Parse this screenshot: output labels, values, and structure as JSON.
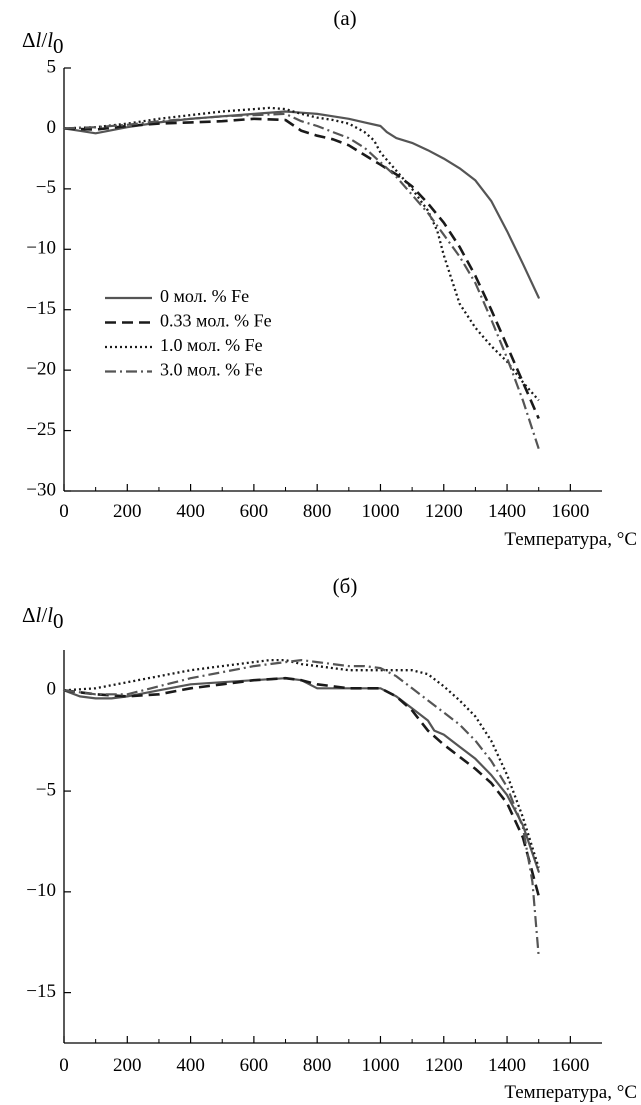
{
  "chart_data": [
    {
      "type": "line",
      "panel_label": "(a)",
      "ylabel": {
        "delta": "Δ",
        "l": "l",
        "slash": "/",
        "l0": "l",
        "sub": "0"
      },
      "xlabel": "Температура, °C",
      "xlim": [
        0,
        1700
      ],
      "ylim": [
        -30,
        5
      ],
      "xticks": [
        0,
        200,
        400,
        600,
        800,
        1000,
        1200,
        1400,
        1600
      ],
      "yticks": [
        5,
        0,
        -5,
        -10,
        -15,
        -20,
        -25,
        -30
      ],
      "ytick_labels": [
        "5",
        "0",
        "−5",
        "−10",
        "−15",
        "−20",
        "−25",
        "−30"
      ],
      "legend_position": "lower-left",
      "series": [
        {
          "name": "0 мол. % Fe",
          "style": "solid",
          "x": [
            0,
            50,
            100,
            200,
            300,
            400,
            500,
            600,
            700,
            750,
            800,
            850,
            900,
            950,
            1000,
            1020,
            1050,
            1100,
            1150,
            1200,
            1250,
            1300,
            1350,
            1400,
            1450,
            1500
          ],
          "y": [
            0,
            -0.2,
            -0.4,
            0.1,
            0.5,
            0.8,
            1.0,
            1.2,
            1.4,
            1.3,
            1.2,
            1.0,
            0.8,
            0.5,
            0.2,
            -0.3,
            -0.8,
            -1.2,
            -1.8,
            -2.5,
            -3.3,
            -4.3,
            -6.0,
            -8.5,
            -11.2,
            -14.0
          ]
        },
        {
          "name": "0.33 мол. % Fe",
          "style": "dashed",
          "x": [
            0,
            100,
            200,
            300,
            400,
            500,
            600,
            700,
            750,
            800,
            850,
            900,
            950,
            1000,
            1050,
            1100,
            1150,
            1200,
            1250,
            1300,
            1350,
            1400,
            1450,
            1500
          ],
          "y": [
            0,
            -0.1,
            0.2,
            0.4,
            0.5,
            0.6,
            0.8,
            0.7,
            -0.2,
            -0.6,
            -0.9,
            -1.4,
            -2.2,
            -3.0,
            -3.8,
            -4.8,
            -6.2,
            -7.8,
            -9.8,
            -12.2,
            -15.0,
            -18.0,
            -21.0,
            -24.0
          ]
        },
        {
          "name": "1.0 мол. % Fe",
          "style": "dotted",
          "x": [
            0,
            100,
            200,
            300,
            400,
            500,
            600,
            650,
            700,
            750,
            800,
            850,
            900,
            950,
            980,
            1000,
            1050,
            1100,
            1150,
            1180,
            1200,
            1250,
            1300,
            1350,
            1400,
            1450,
            1500
          ],
          "y": [
            0,
            0.1,
            0.4,
            0.8,
            1.1,
            1.4,
            1.6,
            1.7,
            1.6,
            1.2,
            0.9,
            0.7,
            0.4,
            -0.3,
            -1.0,
            -2.0,
            -3.5,
            -5.0,
            -6.8,
            -8.5,
            -10.5,
            -14.5,
            -16.5,
            -18.0,
            -19.3,
            -21.0,
            -22.5
          ]
        },
        {
          "name": "3.0 мол. % Fe",
          "style": "dashdot",
          "x": [
            0,
            100,
            200,
            300,
            400,
            500,
            600,
            700,
            750,
            800,
            850,
            900,
            950,
            1000,
            1050,
            1100,
            1150,
            1200,
            1250,
            1300,
            1350,
            1400,
            1450,
            1500
          ],
          "y": [
            0,
            0.1,
            0.3,
            0.6,
            0.8,
            1.0,
            1.1,
            1.2,
            0.6,
            0.2,
            -0.3,
            -0.8,
            -1.6,
            -2.8,
            -4.0,
            -5.5,
            -7.0,
            -8.8,
            -10.6,
            -12.8,
            -15.8,
            -19.0,
            -22.5,
            -26.5
          ]
        }
      ]
    },
    {
      "type": "line",
      "panel_label": "(б)",
      "ylabel": {
        "delta": "Δ",
        "l": "l",
        "slash": "/",
        "l0": "l",
        "sub": "0"
      },
      "xlabel": "Температура, °C",
      "xlim": [
        0,
        1700
      ],
      "ylim": [
        -17.5,
        2
      ],
      "xticks": [
        0,
        200,
        400,
        600,
        800,
        1000,
        1200,
        1400,
        1600
      ],
      "yticks": [
        0,
        -5,
        -10,
        -15
      ],
      "ytick_labels": [
        "0",
        "−5",
        "−10",
        "−15"
      ],
      "series": [
        {
          "style": "solid",
          "x": [
            0,
            50,
            100,
            150,
            200,
            300,
            400,
            500,
            600,
            700,
            750,
            800,
            850,
            900,
            950,
            1000,
            1050,
            1100,
            1150,
            1170,
            1200,
            1250,
            1300,
            1350,
            1400,
            1450,
            1500
          ],
          "y": [
            0,
            -0.3,
            -0.4,
            -0.4,
            -0.3,
            0.0,
            0.3,
            0.4,
            0.5,
            0.6,
            0.5,
            0.1,
            0.1,
            0.1,
            0.1,
            0.1,
            -0.3,
            -0.9,
            -1.5,
            -2.0,
            -2.2,
            -2.8,
            -3.4,
            -4.2,
            -5.2,
            -6.7,
            -9.0
          ]
        },
        {
          "style": "dashed",
          "x": [
            0,
            100,
            200,
            300,
            400,
            500,
            600,
            700,
            750,
            800,
            850,
            900,
            950,
            1000,
            1050,
            1100,
            1150,
            1200,
            1250,
            1300,
            1350,
            1400,
            1450,
            1500
          ],
          "y": [
            0,
            -0.2,
            -0.3,
            -0.2,
            0.1,
            0.3,
            0.5,
            0.6,
            0.5,
            0.3,
            0.2,
            0.1,
            0.1,
            0.1,
            -0.3,
            -1.0,
            -2.0,
            -2.7,
            -3.3,
            -3.9,
            -4.6,
            -5.6,
            -7.3,
            -10.2
          ]
        },
        {
          "style": "dotted",
          "x": [
            0,
            100,
            200,
            300,
            400,
            500,
            600,
            650,
            700,
            750,
            800,
            850,
            900,
            950,
            1000,
            1050,
            1100,
            1150,
            1200,
            1250,
            1300,
            1350,
            1400,
            1450,
            1500
          ],
          "y": [
            0,
            0.1,
            0.4,
            0.7,
            1.0,
            1.2,
            1.4,
            1.5,
            1.5,
            1.3,
            1.2,
            1.1,
            1.0,
            1.0,
            1.0,
            1.0,
            1.0,
            0.8,
            0.2,
            -0.5,
            -1.3,
            -2.5,
            -4.2,
            -6.3,
            -8.8
          ]
        },
        {
          "style": "dashdot",
          "x": [
            0,
            100,
            200,
            300,
            400,
            500,
            600,
            700,
            750,
            800,
            850,
            900,
            950,
            1000,
            1050,
            1100,
            1150,
            1200,
            1250,
            1300,
            1350,
            1400,
            1450,
            1480,
            1500
          ],
          "y": [
            0,
            -0.2,
            -0.2,
            0.2,
            0.6,
            0.9,
            1.2,
            1.4,
            1.5,
            1.4,
            1.3,
            1.2,
            1.2,
            1.1,
            0.7,
            0.1,
            -0.5,
            -1.1,
            -1.7,
            -2.5,
            -3.5,
            -4.8,
            -6.8,
            -9.5,
            -13.2
          ]
        }
      ]
    }
  ]
}
